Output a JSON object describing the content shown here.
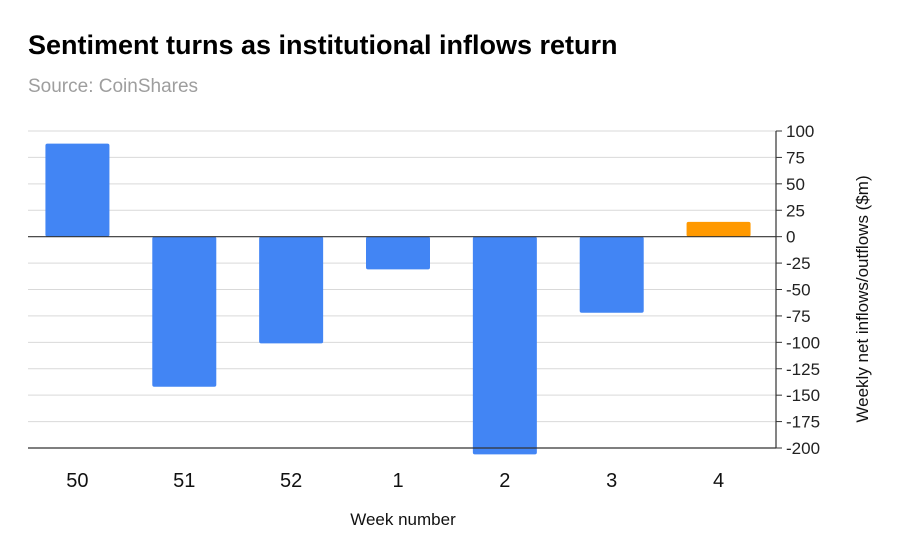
{
  "header": {
    "title": "Sentiment turns as institutional inflows return",
    "subtitle": "Source: CoinShares"
  },
  "chart_data": {
    "type": "bar",
    "title": "Sentiment turns as institutional inflows return",
    "subtitle": "Source: CoinShares",
    "xlabel": "Week number",
    "ylabel": "Weekly net inflows/outflows ($m)",
    "categories": [
      "50",
      "51",
      "52",
      "1",
      "2",
      "3",
      "4"
    ],
    "values": [
      88,
      -142,
      -101,
      -31,
      -206,
      -72,
      14
    ],
    "bar_colors": [
      "#4285f4",
      "#4285f4",
      "#4285f4",
      "#4285f4",
      "#4285f4",
      "#4285f4",
      "#ff9900"
    ],
    "ylim": [
      -200,
      100
    ],
    "yticks": [
      100,
      75,
      50,
      25,
      0,
      -25,
      -50,
      -75,
      -100,
      -125,
      -150,
      -175,
      -200
    ],
    "ytick_labels": [
      "100",
      "75",
      "50",
      "25",
      "0",
      "-25",
      "-50",
      "-75",
      "-100",
      "-125",
      "-150",
      "-175",
      "-200"
    ],
    "y_axis_side": "right",
    "grid": true,
    "legend": "none"
  }
}
